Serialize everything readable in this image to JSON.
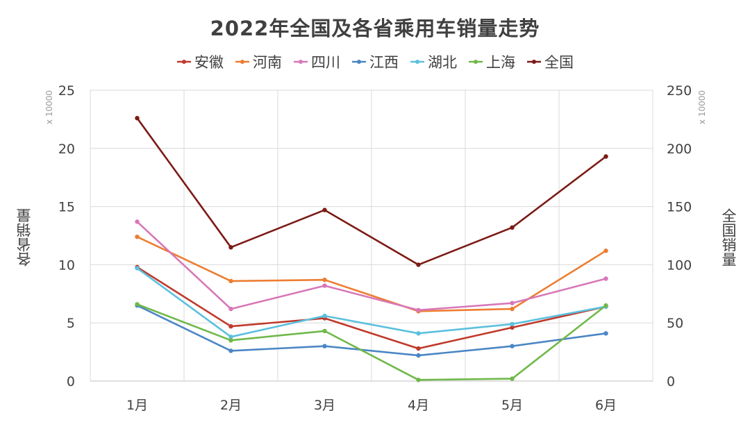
{
  "chart_data": {
    "type": "line",
    "title": "2022年全国及各省乘用车销量走势",
    "categories": [
      "1月",
      "2月",
      "3月",
      "4月",
      "5月",
      "6月"
    ],
    "ylabel": "各省销量",
    "y2label": "全国销量",
    "yunit": "x 10000",
    "y2unit": "x 10000",
    "ylim": [
      0,
      25
    ],
    "y2lim": [
      0,
      250
    ],
    "yticks": [
      "0",
      "5",
      "10",
      "15",
      "20",
      "25"
    ],
    "y2ticks": [
      "0",
      "50",
      "100",
      "150",
      "200",
      "250"
    ],
    "grid": true,
    "legend_position": "top",
    "series": [
      {
        "name": "安徽",
        "axis": "left",
        "color": "#c0392b",
        "values": [
          9.8,
          4.7,
          5.4,
          2.8,
          4.6,
          6.4
        ]
      },
      {
        "name": "河南",
        "axis": "left",
        "color": "#ed7d31",
        "values": [
          12.4,
          8.6,
          8.7,
          6.0,
          6.2,
          11.2
        ]
      },
      {
        "name": "四川",
        "axis": "left",
        "color": "#d877b8",
        "values": [
          13.7,
          6.2,
          8.2,
          6.1,
          6.7,
          8.8
        ]
      },
      {
        "name": "江西",
        "axis": "left",
        "color": "#4a86c5",
        "values": [
          6.5,
          2.6,
          3.0,
          2.2,
          3.0,
          4.1
        ]
      },
      {
        "name": "湖北",
        "axis": "left",
        "color": "#5bc0de",
        "values": [
          9.7,
          3.8,
          5.6,
          4.1,
          4.9,
          6.4
        ]
      },
      {
        "name": "上海",
        "axis": "left",
        "color": "#70b84a",
        "values": [
          6.6,
          3.5,
          4.3,
          0.1,
          0.2,
          6.5
        ]
      },
      {
        "name": "全国",
        "axis": "right",
        "color": "#7b1a15",
        "values": [
          226,
          115,
          147,
          100,
          132,
          193
        ]
      }
    ]
  }
}
